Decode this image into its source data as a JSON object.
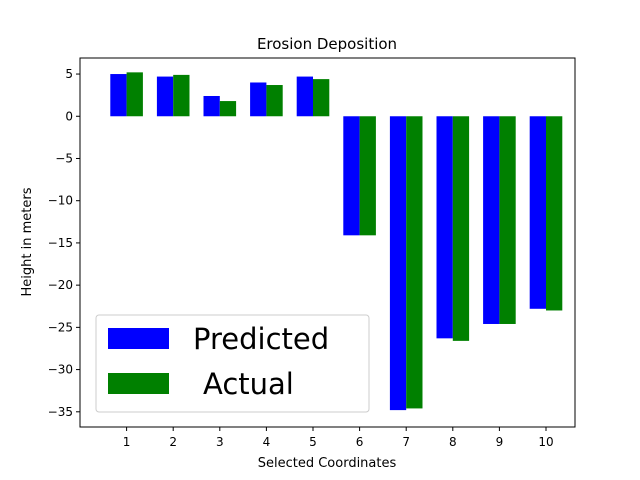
{
  "chart_data": {
    "type": "bar",
    "title": "Erosion Deposition",
    "xlabel": "Selected Coordinates",
    "ylabel": "Height in meters",
    "categories": [
      "1",
      "2",
      "3",
      "4",
      "5",
      "6",
      "7",
      "8",
      "9",
      "10"
    ],
    "series": [
      {
        "name": "Predicted",
        "color": "#0000ff",
        "values": [
          5.0,
          4.7,
          2.4,
          4.0,
          4.7,
          -14.1,
          -34.8,
          -26.3,
          -24.6,
          -22.8
        ]
      },
      {
        "name": "Actual",
        "color": "#008000",
        "values": [
          5.2,
          4.9,
          1.8,
          3.7,
          4.4,
          -14.1,
          -34.6,
          -26.6,
          -24.6,
          -23.0
        ]
      }
    ],
    "ylim": [
      -36.8,
      6.9
    ],
    "yticks": [
      5,
      0,
      -5,
      -10,
      -15,
      -20,
      -25,
      -30,
      -35
    ],
    "ytick_labels": [
      "5",
      "0",
      "−5",
      "−10",
      "−15",
      "−20",
      "−25",
      "−30",
      "−35"
    ],
    "grid": false,
    "legend_position": "lower-left"
  }
}
